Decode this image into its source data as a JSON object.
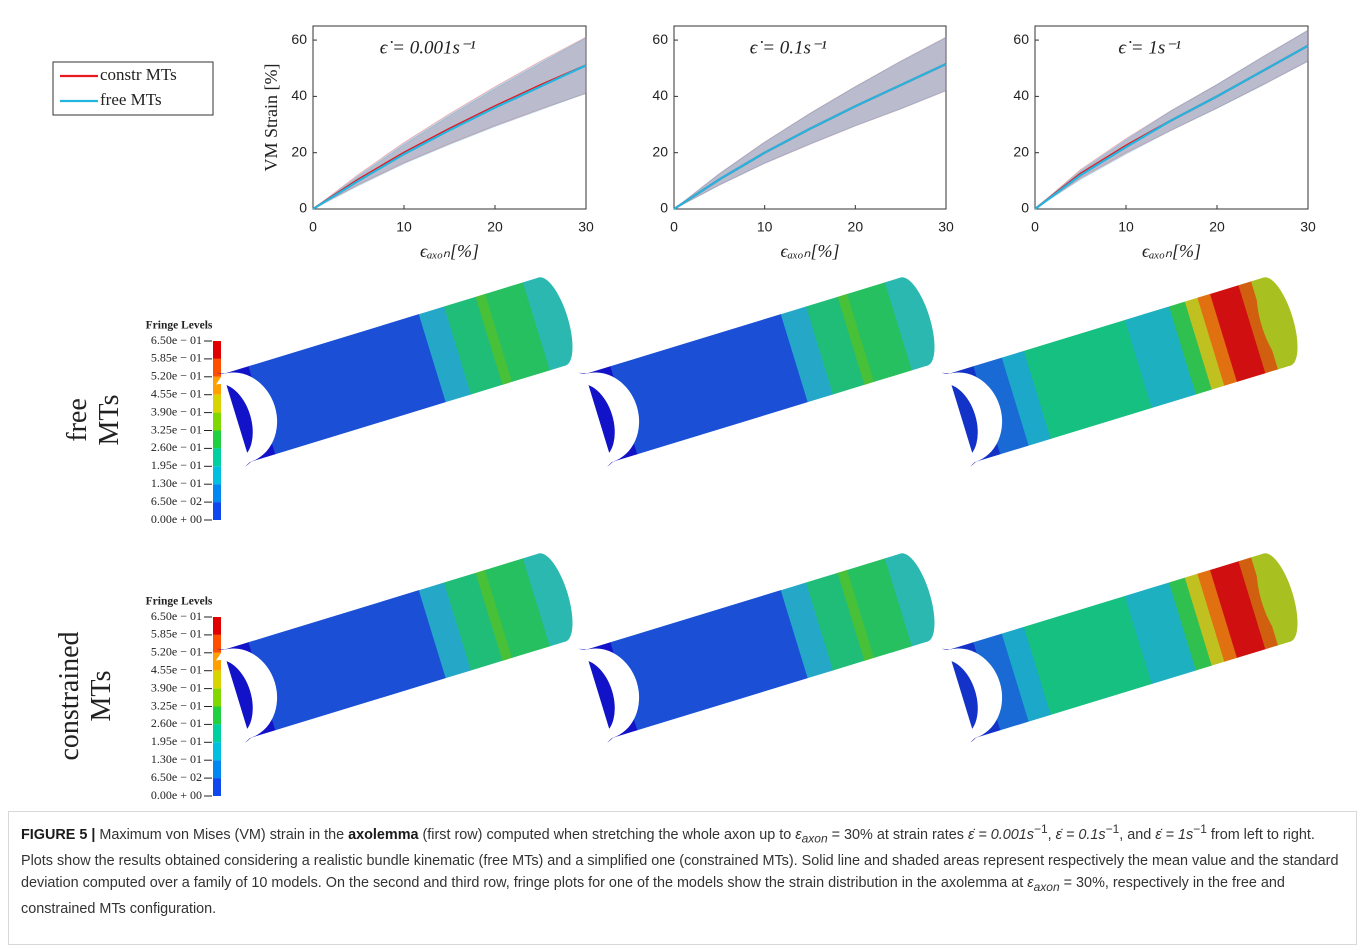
{
  "chart_data": [
    {
      "type": "line",
      "title": "ϵ̇ = 0.001s⁻¹",
      "ylabel": "VM Strain [%]",
      "xlabel": "ϵₐₓₒₙ[%]",
      "x": [
        0,
        5,
        10,
        15,
        20,
        25,
        30
      ],
      "xlim": [
        0,
        30
      ],
      "xticks": [
        0,
        10,
        20,
        30
      ],
      "ylim": [
        0,
        65
      ],
      "yticks": [
        0,
        20,
        40,
        60
      ],
      "legend": "left",
      "series": [
        {
          "name": "constr MTs",
          "color": "#e8191c",
          "values": [
            0,
            10.5,
            20,
            28.5,
            36.5,
            44,
            51
          ],
          "std": [
            0,
            1.8,
            3.6,
            5.3,
            6.9,
            8.5,
            10
          ]
        },
        {
          "name": "free MTs",
          "color": "#22b5e0",
          "values": [
            0,
            10,
            19.5,
            28,
            36,
            43.5,
            51
          ],
          "std": [
            0,
            1.7,
            3.4,
            5.1,
            6.7,
            8.3,
            9.8
          ]
        }
      ]
    },
    {
      "type": "line",
      "title": "ϵ̇ = 0.1s⁻¹",
      "xlabel": "ϵₐₓₒₙ[%]",
      "x": [
        0,
        5,
        10,
        15,
        20,
        25,
        30
      ],
      "xlim": [
        0,
        30
      ],
      "xticks": [
        0,
        10,
        20,
        30
      ],
      "ylim": [
        0,
        65
      ],
      "yticks": [
        0,
        20,
        40,
        60
      ],
      "series": [
        {
          "color": "#e8191c",
          "values": [
            0,
            10.5,
            20,
            28.5,
            36.5,
            44,
            51.5
          ],
          "std": [
            0,
            2,
            3.8,
            5.5,
            7,
            8.5,
            9.5
          ]
        },
        {
          "color": "#22b5e0",
          "values": [
            0,
            10.5,
            20,
            28.5,
            36.5,
            44,
            51.5
          ],
          "std": [
            0,
            2,
            3.7,
            5.4,
            6.9,
            8.4,
            9.4
          ]
        }
      ]
    },
    {
      "type": "line",
      "title": "ϵ̇ = 1s⁻¹",
      "xlabel": "ϵₐₓₒₙ[%]",
      "x": [
        0,
        5,
        10,
        15,
        20,
        25,
        30
      ],
      "xlim": [
        0,
        30
      ],
      "xticks": [
        0,
        10,
        20,
        30
      ],
      "ylim": [
        0,
        65
      ],
      "yticks": [
        0,
        20,
        40,
        60
      ],
      "series": [
        {
          "color": "#e8191c",
          "values": [
            0,
            12.5,
            22.5,
            31.5,
            40,
            49,
            58
          ],
          "std": [
            0,
            1.5,
            2.5,
            3.5,
            4.2,
            5,
            5.5
          ]
        },
        {
          "color": "#22b5e0",
          "values": [
            0,
            12,
            22,
            31.5,
            40,
            49,
            58
          ],
          "std": [
            0,
            1.5,
            2.5,
            3.5,
            4.2,
            5,
            5.5
          ]
        }
      ]
    }
  ],
  "rows": [
    {
      "label": [
        "free",
        "MTs"
      ],
      "fringe_legend": {
        "title": "Fringe Levels",
        "levels": [
          "6.50e − 01",
          "5.85e − 01",
          "5.20e − 01",
          "4.55e − 01",
          "3.90e − 01",
          "3.25e − 01",
          "2.60e − 01",
          "1.95e − 01",
          "1.30e − 01",
          "6.50e − 02",
          "0.00e + 00"
        ]
      }
    },
    {
      "label": [
        "constrained",
        "MTs"
      ],
      "fringe_legend": {
        "title": "Fringe Levels",
        "levels": [
          "6.50e − 01",
          "5.85e − 01",
          "5.20e − 01",
          "4.55e − 01",
          "3.90e − 01",
          "3.25e − 01",
          "2.60e − 01",
          "1.95e − 01",
          "1.30e − 01",
          "6.50e − 02",
          "0.00e + 00"
        ]
      }
    }
  ],
  "caption": [
    "FIGURE 5 |",
    " Maximum von Mises (VM) strain in the ",
    "axolemma",
    " (first row) computed when stretching the whole axon up to ",
    "ε",
    "axon",
    " = 30% at strain rates ",
    "ε̇ = 0.001s",
    "−1",
    ", ",
    "ε̇ = 0.1s",
    "−1",
    ", and ",
    "ε̇ = 1s",
    "−1",
    " from left to right. Plots show the results obtained considering a realistic bundle kinematic (free MTs) and a simplified one (constrained MTs). Solid line and shaded areas represent respectively the mean value and the standard deviation computed over a family of 10 models. On the second and third row, fringe plots for one of the models show the strain distribution in the axolemma at ",
    "ε",
    "axon",
    " = 30%, respectively in the free and constrained MTs configuration."
  ]
}
